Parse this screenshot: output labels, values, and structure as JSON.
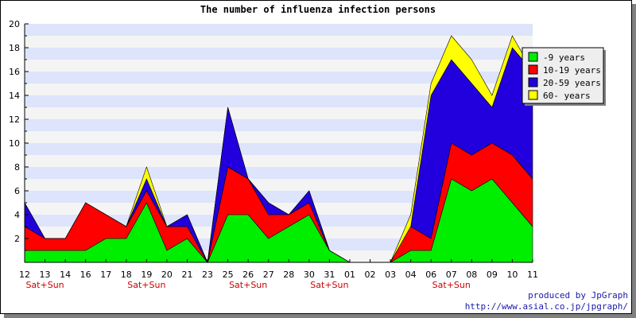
{
  "chart_data": {
    "type": "area",
    "stacked": true,
    "title": "The number of influenza infection persons",
    "ylim": [
      0,
      20
    ],
    "yticks": [
      2,
      4,
      6,
      8,
      10,
      12,
      14,
      16,
      18,
      20
    ],
    "x_labels": [
      "12",
      "13",
      "14",
      "16",
      "17",
      "18",
      "19",
      "20",
      "21",
      "23",
      "25",
      "26",
      "27",
      "28",
      "30",
      "31",
      "01",
      "02",
      "03",
      "04",
      "06",
      "07",
      "08",
      "09",
      "10",
      "11"
    ],
    "weekend_label": "Sat+Sun",
    "weekend_under": [
      "13",
      "19",
      "26",
      "31",
      "07"
    ],
    "series": [
      {
        "name": "-9 years",
        "color": "#00ee00",
        "values": [
          1,
          1,
          1,
          1,
          2,
          2,
          5,
          1,
          2,
          0,
          4,
          4,
          2,
          3,
          4,
          1,
          0,
          0,
          0,
          1,
          1,
          7,
          6,
          7,
          5,
          3
        ]
      },
      {
        "name": "10-19 years",
        "color": "#ff0000",
        "values": [
          2,
          1,
          1,
          4,
          2,
          1,
          1,
          2,
          1,
          0,
          4,
          3,
          2,
          1,
          1,
          0,
          0,
          0,
          0,
          2,
          1,
          3,
          3,
          3,
          4,
          4
        ]
      },
      {
        "name": "20-59 years",
        "color": "#2200dd",
        "values": [
          2,
          0,
          0,
          0,
          0,
          0,
          1,
          0,
          1,
          0,
          5,
          0,
          1,
          0,
          1,
          0,
          0,
          0,
          0,
          0,
          12,
          7,
          6,
          3,
          9,
          9
        ]
      },
      {
        "name": "60- years",
        "color": "#ffff00",
        "values": [
          0,
          0,
          0,
          0,
          0,
          0,
          1,
          0,
          0,
          0,
          0,
          0,
          0,
          0,
          0,
          0,
          0,
          0,
          0,
          1,
          1,
          2,
          2,
          1,
          1,
          0
        ]
      }
    ],
    "legend_position": "right"
  },
  "credits": {
    "line1": "produced by JpGraph",
    "line2": "http://www.asial.co.jp/jpgraph/"
  }
}
